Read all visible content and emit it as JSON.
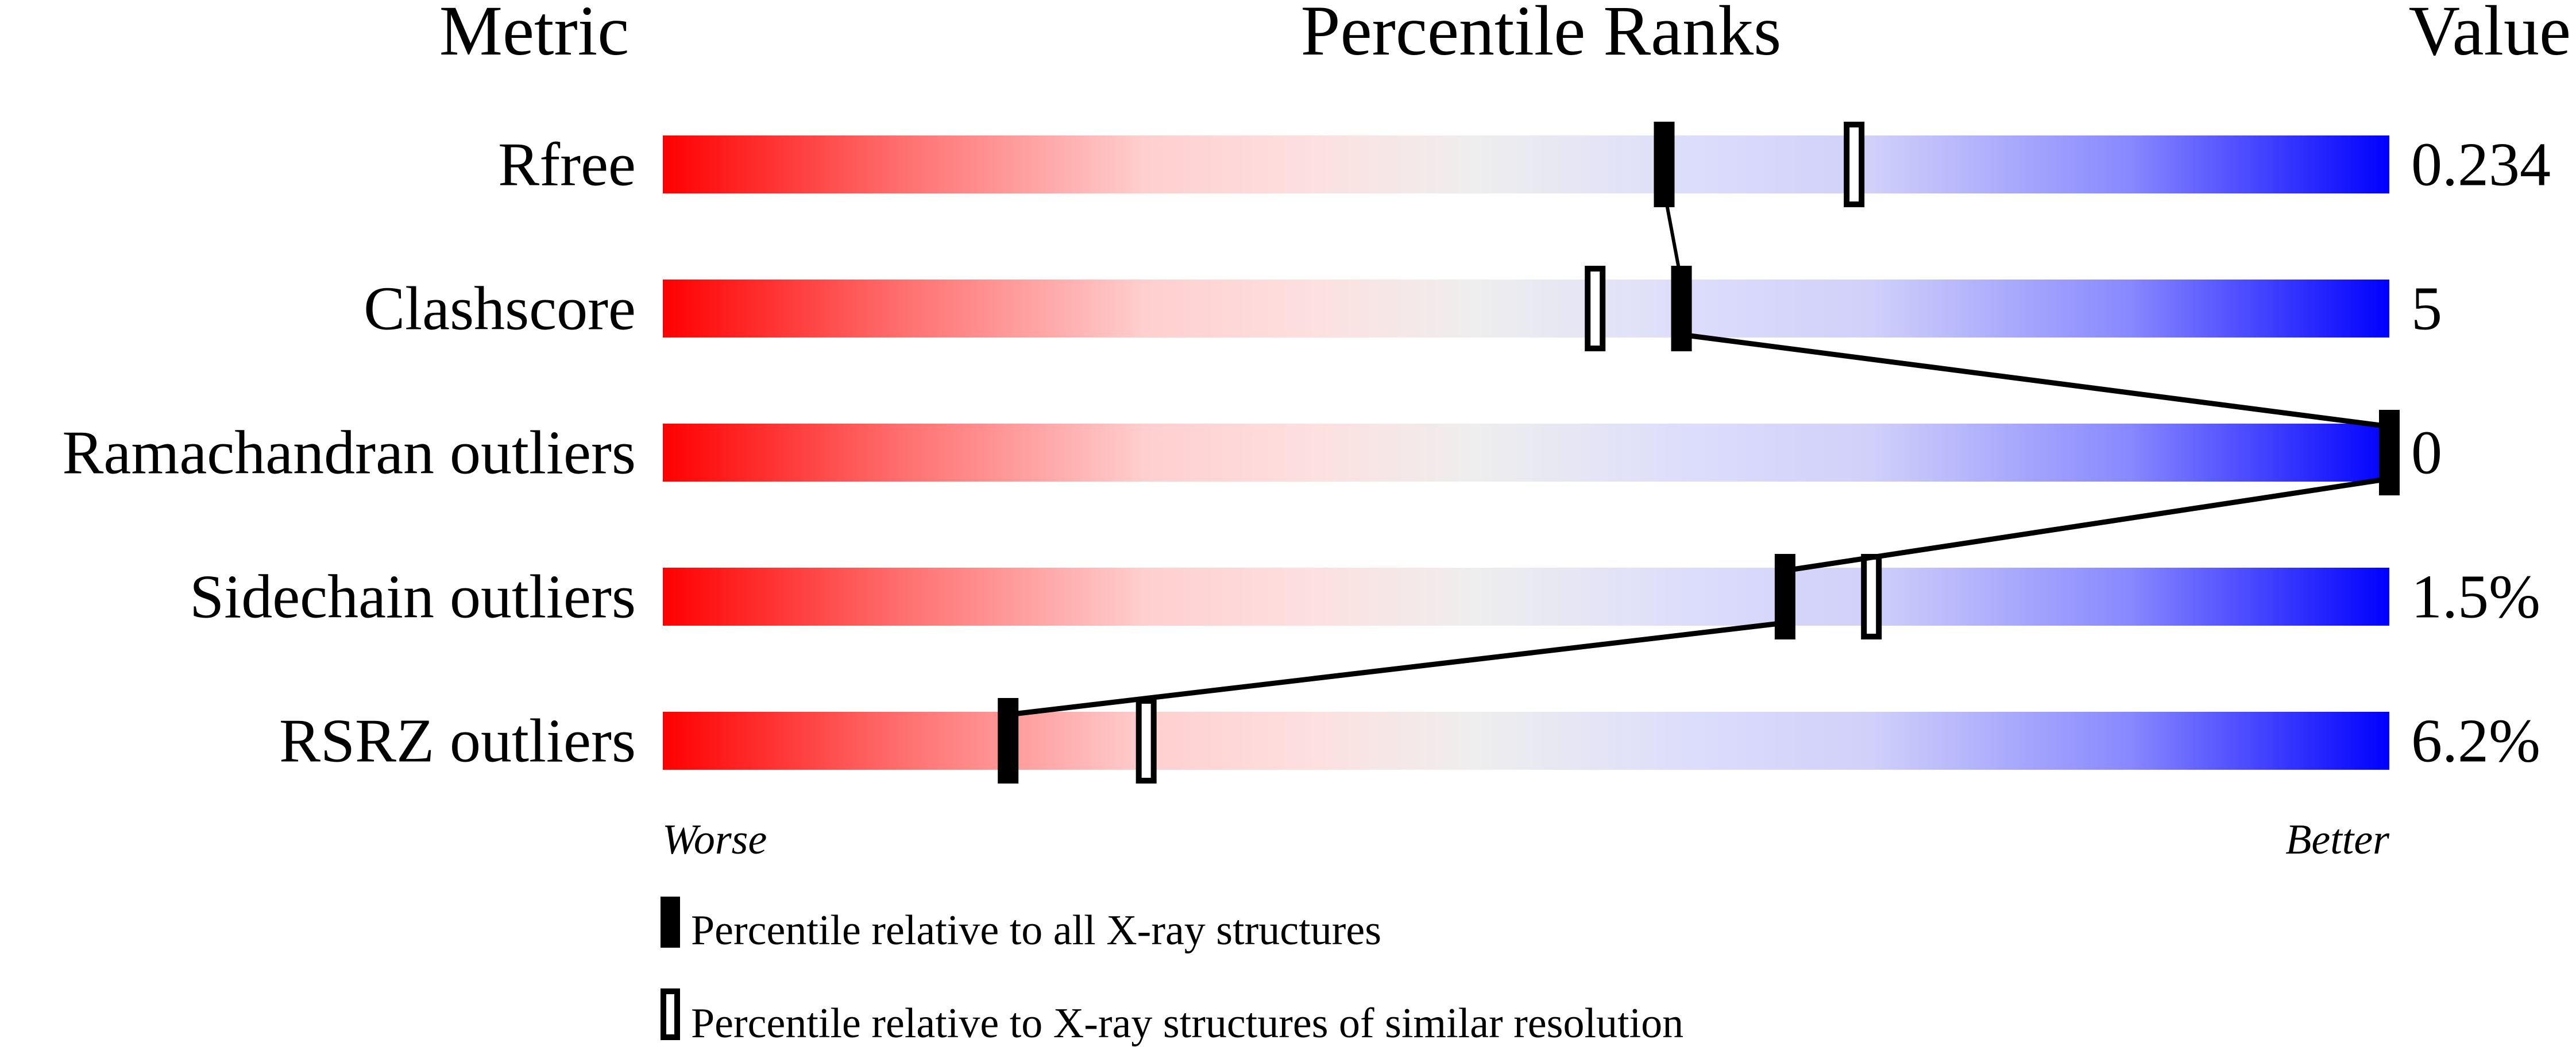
{
  "chart_data": {
    "type": "percentile-bar",
    "headers": {
      "metric": "Metric",
      "ranks": "Percentile Ranks",
      "value": "Value"
    },
    "axis": {
      "left_label": "Worse",
      "right_label": "Better",
      "range": [
        0,
        100
      ]
    },
    "gradient_colors": [
      "#ff0000",
      "#eeeeee",
      "#dcdcfa",
      "#0000ff"
    ],
    "metrics": [
      {
        "name": "Rfree",
        "value": "0.234",
        "percentile_all": 58,
        "percentile_similar": 69
      },
      {
        "name": "Clashscore",
        "value": "5",
        "percentile_all": 59,
        "percentile_similar": 54
      },
      {
        "name": "Ramachandran outliers",
        "value": "0",
        "percentile_all": 100,
        "percentile_similar": null
      },
      {
        "name": "Sidechain outliers",
        "value": "1.5%",
        "percentile_all": 65,
        "percentile_similar": 70
      },
      {
        "name": "RSRZ outliers",
        "value": "6.2%",
        "percentile_all": 20,
        "percentile_similar": 28
      }
    ],
    "legend": [
      {
        "marker": "filled",
        "label": "Percentile relative to all X-ray structures"
      },
      {
        "marker": "open",
        "label": "Percentile relative to X-ray structures of similar resolution"
      }
    ]
  }
}
